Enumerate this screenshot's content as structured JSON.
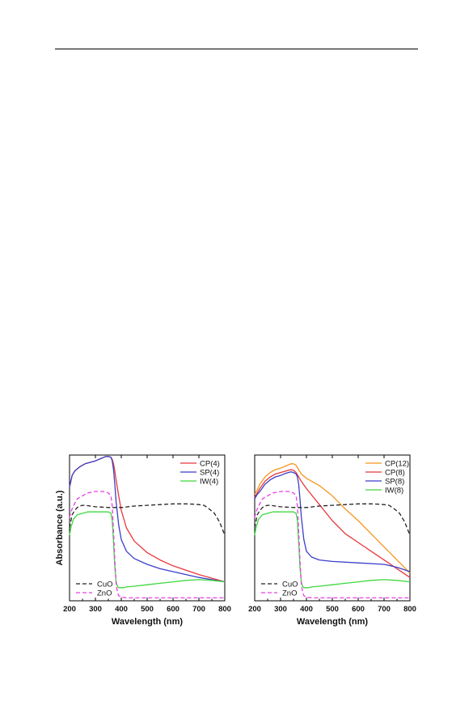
{
  "page": {
    "bg_color": "#ffffff"
  },
  "chart_data": [
    {
      "type": "line",
      "xlabel": "Wavelength (nm)",
      "ylabel": "Absorbance (a.u.)",
      "xlim": [
        200,
        800
      ],
      "ylim": [
        0,
        1
      ],
      "xticks": [
        "200",
        "300",
        "400",
        "500",
        "600",
        "700",
        "800"
      ],
      "grid": false,
      "legend_upper": "top-right",
      "legend_lower": "bottom-left",
      "series": [
        {
          "name": "CP(4)",
          "color": "#e8373a",
          "dash": "solid",
          "legend": "upper",
          "x": [
            200,
            210,
            220,
            240,
            260,
            280,
            300,
            320,
            340,
            350,
            360,
            365,
            370,
            375,
            380,
            390,
            400,
            420,
            450,
            500,
            550,
            600,
            650,
            700,
            750,
            800
          ],
          "y": [
            0.78,
            0.86,
            0.89,
            0.92,
            0.94,
            0.95,
            0.96,
            0.975,
            0.99,
            0.99,
            0.985,
            0.97,
            0.94,
            0.89,
            0.83,
            0.72,
            0.62,
            0.5,
            0.41,
            0.33,
            0.28,
            0.24,
            0.21,
            0.18,
            0.155,
            0.13
          ]
        },
        {
          "name": "SP(4)",
          "color": "#3a3fc8",
          "dash": "solid",
          "legend": "upper",
          "x": [
            200,
            210,
            220,
            240,
            260,
            280,
            300,
            320,
            340,
            350,
            360,
            365,
            370,
            375,
            380,
            390,
            400,
            420,
            450,
            500,
            550,
            600,
            650,
            700,
            750,
            800
          ],
          "y": [
            0.78,
            0.86,
            0.89,
            0.92,
            0.94,
            0.95,
            0.96,
            0.975,
            0.99,
            0.99,
            0.985,
            0.96,
            0.9,
            0.8,
            0.68,
            0.52,
            0.42,
            0.34,
            0.29,
            0.25,
            0.22,
            0.2,
            0.18,
            0.16,
            0.145,
            0.13
          ]
        },
        {
          "name": "IW(4)",
          "color": "#3fd83f",
          "dash": "solid",
          "legend": "upper",
          "x": [
            200,
            205,
            215,
            230,
            250,
            270,
            300,
            330,
            350,
            360,
            365,
            370,
            375,
            380,
            385,
            390,
            400,
            410,
            420,
            450,
            500,
            550,
            600,
            650,
            700,
            750,
            800
          ],
          "y": [
            0.45,
            0.5,
            0.56,
            0.59,
            0.6,
            0.61,
            0.61,
            0.61,
            0.61,
            0.6,
            0.55,
            0.4,
            0.23,
            0.13,
            0.1,
            0.09,
            0.09,
            0.09,
            0.095,
            0.1,
            0.11,
            0.12,
            0.13,
            0.14,
            0.145,
            0.14,
            0.13
          ]
        },
        {
          "name": "CuO",
          "color": "#222222",
          "dash": "dash",
          "legend": "lower",
          "x": [
            200,
            210,
            220,
            230,
            240,
            250,
            260,
            280,
            300,
            350,
            400,
            450,
            500,
            550,
            600,
            650,
            680,
            700,
            720,
            740,
            760,
            780,
            800
          ],
          "y": [
            0.5,
            0.59,
            0.62,
            0.64,
            0.65,
            0.655,
            0.655,
            0.65,
            0.645,
            0.64,
            0.64,
            0.65,
            0.655,
            0.66,
            0.665,
            0.665,
            0.663,
            0.66,
            0.655,
            0.63,
            0.6,
            0.54,
            0.45
          ]
        },
        {
          "name": "ZnO",
          "color": "#e83fe8",
          "dash": "dash",
          "legend": "lower",
          "x": [
            200,
            205,
            215,
            230,
            250,
            270,
            300,
            330,
            350,
            360,
            365,
            370,
            375,
            380,
            385,
            390,
            400,
            420,
            450,
            500,
            600,
            700,
            800
          ],
          "y": [
            0.57,
            0.61,
            0.65,
            0.7,
            0.72,
            0.74,
            0.75,
            0.75,
            0.74,
            0.72,
            0.65,
            0.48,
            0.28,
            0.12,
            0.06,
            0.035,
            0.025,
            0.02,
            0.02,
            0.02,
            0.02,
            0.02,
            0.02
          ]
        }
      ]
    },
    {
      "type": "line",
      "xlabel": "Wavelength (nm)",
      "ylabel": "",
      "xlim": [
        200,
        800
      ],
      "ylim": [
        0,
        1
      ],
      "xticks": [
        "200",
        "300",
        "400",
        "500",
        "600",
        "700",
        "800"
      ],
      "grid": false,
      "legend_upper": "top-right",
      "legend_lower": "bottom-left",
      "series": [
        {
          "name": "CP(12)",
          "color": "#f7941d",
          "dash": "solid",
          "legend": "upper",
          "x": [
            200,
            210,
            220,
            240,
            260,
            280,
            300,
            320,
            340,
            350,
            360,
            370,
            380,
            400,
            450,
            500,
            550,
            600,
            650,
            700,
            750,
            800
          ],
          "y": [
            0.73,
            0.76,
            0.8,
            0.85,
            0.88,
            0.9,
            0.91,
            0.925,
            0.94,
            0.94,
            0.93,
            0.9,
            0.87,
            0.84,
            0.79,
            0.72,
            0.63,
            0.55,
            0.46,
            0.37,
            0.28,
            0.19
          ]
        },
        {
          "name": "CP(8)",
          "color": "#e8373a",
          "dash": "solid",
          "legend": "upper",
          "x": [
            200,
            210,
            220,
            240,
            260,
            280,
            300,
            320,
            340,
            350,
            360,
            370,
            380,
            400,
            450,
            500,
            550,
            600,
            650,
            700,
            750,
            800
          ],
          "y": [
            0.71,
            0.74,
            0.77,
            0.82,
            0.85,
            0.87,
            0.88,
            0.89,
            0.9,
            0.895,
            0.88,
            0.85,
            0.82,
            0.77,
            0.66,
            0.55,
            0.46,
            0.4,
            0.34,
            0.28,
            0.22,
            0.16
          ]
        },
        {
          "name": "SP(8)",
          "color": "#3a3fc8",
          "dash": "solid",
          "legend": "upper",
          "x": [
            200,
            210,
            220,
            240,
            260,
            280,
            300,
            320,
            340,
            350,
            360,
            365,
            370,
            375,
            380,
            390,
            400,
            420,
            450,
            500,
            600,
            700,
            750,
            800
          ],
          "y": [
            0.7,
            0.73,
            0.75,
            0.8,
            0.83,
            0.85,
            0.86,
            0.875,
            0.885,
            0.88,
            0.87,
            0.85,
            0.8,
            0.7,
            0.58,
            0.42,
            0.34,
            0.3,
            0.28,
            0.27,
            0.26,
            0.25,
            0.23,
            0.2
          ]
        },
        {
          "name": "IW(8)",
          "color": "#3fd83f",
          "dash": "solid",
          "legend": "upper",
          "x": [
            200,
            205,
            215,
            230,
            250,
            270,
            300,
            330,
            350,
            360,
            365,
            370,
            375,
            380,
            385,
            390,
            400,
            410,
            420,
            450,
            500,
            550,
            600,
            650,
            700,
            750,
            800
          ],
          "y": [
            0.45,
            0.5,
            0.56,
            0.59,
            0.6,
            0.61,
            0.61,
            0.61,
            0.61,
            0.6,
            0.55,
            0.4,
            0.23,
            0.13,
            0.1,
            0.09,
            0.09,
            0.09,
            0.095,
            0.1,
            0.11,
            0.12,
            0.13,
            0.14,
            0.145,
            0.14,
            0.13
          ]
        },
        {
          "name": "CuO",
          "color": "#222222",
          "dash": "dash",
          "legend": "lower",
          "x": [
            200,
            210,
            220,
            230,
            240,
            250,
            260,
            280,
            300,
            350,
            400,
            450,
            500,
            550,
            600,
            650,
            680,
            700,
            720,
            740,
            760,
            780,
            800
          ],
          "y": [
            0.5,
            0.59,
            0.62,
            0.64,
            0.65,
            0.655,
            0.655,
            0.65,
            0.645,
            0.64,
            0.64,
            0.65,
            0.655,
            0.66,
            0.665,
            0.665,
            0.663,
            0.66,
            0.655,
            0.63,
            0.6,
            0.54,
            0.45
          ]
        },
        {
          "name": "ZnO",
          "color": "#e83fe8",
          "dash": "dash",
          "legend": "lower",
          "x": [
            200,
            205,
            215,
            230,
            250,
            270,
            300,
            330,
            350,
            360,
            365,
            370,
            375,
            380,
            385,
            390,
            400,
            420,
            450,
            500,
            600,
            700,
            800
          ],
          "y": [
            0.57,
            0.61,
            0.65,
            0.7,
            0.72,
            0.74,
            0.75,
            0.75,
            0.74,
            0.72,
            0.65,
            0.48,
            0.28,
            0.12,
            0.06,
            0.035,
            0.025,
            0.02,
            0.02,
            0.02,
            0.02,
            0.02,
            0.02
          ]
        }
      ]
    }
  ]
}
